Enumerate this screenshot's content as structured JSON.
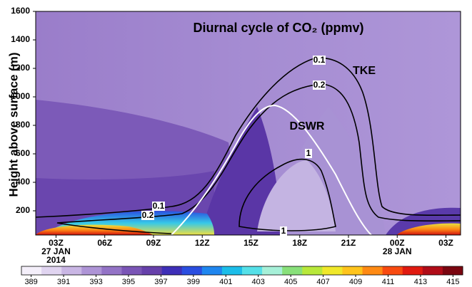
{
  "chart_data": {
    "type": "contour",
    "title": "Diurnal  cycle of CO₂ (ppmv)",
    "y_label": "Height above surface (m)",
    "xlim": [
      1.75,
      27.9
    ],
    "xticks": [
      {
        "value": 3,
        "label": "03Z"
      },
      {
        "value": 6,
        "label": "06Z"
      },
      {
        "value": 9,
        "label": "09Z"
      },
      {
        "value": 12,
        "label": "12Z"
      },
      {
        "value": 15,
        "label": "15Z"
      },
      {
        "value": 18,
        "label": "18Z"
      },
      {
        "value": 21,
        "label": "21Z"
      },
      {
        "value": 24,
        "label": "00Z"
      },
      {
        "value": 27,
        "label": "03Z"
      }
    ],
    "date_labels": [
      {
        "value": 3,
        "label": "27 JAN"
      },
      {
        "value": 3,
        "label": "2014"
      },
      {
        "value": 24,
        "label": "28 JAN"
      }
    ],
    "ylim": [
      30,
      1600
    ],
    "yticks": [
      200,
      400,
      600,
      800,
      1000,
      1200,
      1400,
      1600
    ],
    "annotations": [
      "TKE",
      "DSWR"
    ],
    "contour_labels": [
      0.1,
      0.2,
      1,
      1,
      0.1,
      0.2
    ],
    "clim": [
      388.4,
      415.6
    ],
    "cticks": [
      389,
      391,
      393,
      395,
      397,
      399,
      401,
      403,
      405,
      407,
      409,
      411,
      413,
      415
    ],
    "colormap": [
      "#f4effa",
      "#e0d4f0",
      "#c9b6e4",
      "#ae94d6",
      "#9373c6",
      "#7a55b6",
      "#6640aa",
      "#3e2fb8",
      "#2a4ee0",
      "#1f86ef",
      "#1cbde9",
      "#55e0e8",
      "#a6f0d8",
      "#88e07a",
      "#b8e83a",
      "#f0e82a",
      "#ffc41c",
      "#ff8a14",
      "#f84a10",
      "#e01a10",
      "#b00c18",
      "#7a0610"
    ]
  }
}
